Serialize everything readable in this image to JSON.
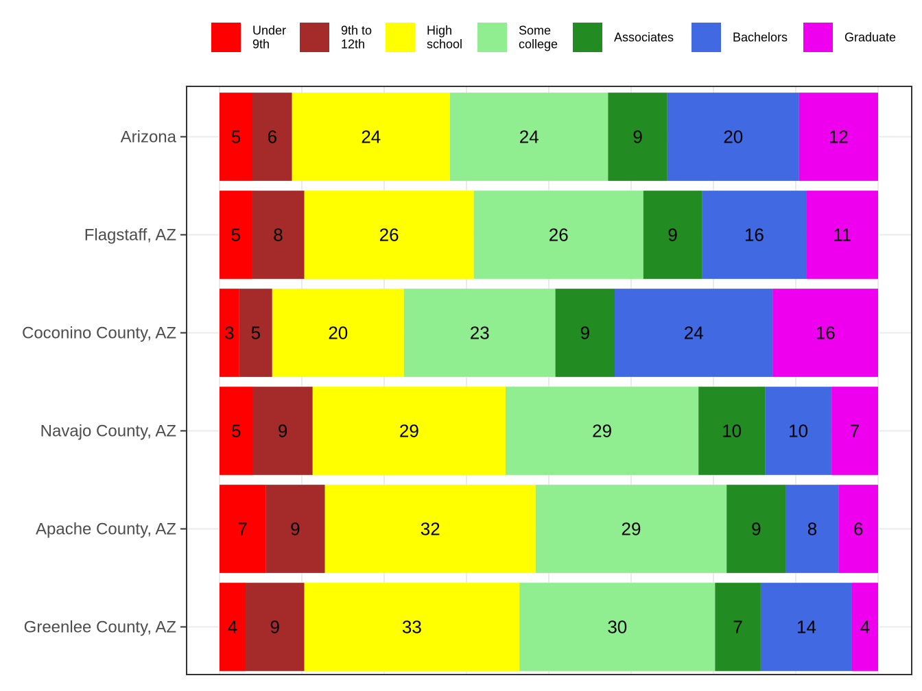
{
  "chart_data": {
    "type": "bar",
    "orientation": "horizontal",
    "stacked": true,
    "categories": [
      "Arizona",
      "Flagstaff, AZ",
      "Coconino County, AZ",
      "Navajo County, AZ",
      "Apache County, AZ",
      "Greenlee County, AZ"
    ],
    "series": [
      {
        "name": "Under\n9th",
        "color": "#FF0000",
        "values": [
          5,
          5,
          3,
          5,
          7,
          4
        ]
      },
      {
        "name": "9th to\n12th",
        "color": "#A52A2A",
        "values": [
          6,
          8,
          5,
          9,
          9,
          9
        ]
      },
      {
        "name": "High\nschool",
        "color": "#FFFF00",
        "values": [
          24,
          26,
          20,
          29,
          32,
          33
        ]
      },
      {
        "name": "Some\ncollege",
        "color": "#90EE90",
        "values": [
          24,
          26,
          23,
          29,
          29,
          30
        ]
      },
      {
        "name": "Associates",
        "color": "#228B22",
        "values": [
          9,
          9,
          9,
          10,
          9,
          7
        ]
      },
      {
        "name": "Bachelors",
        "color": "#4169E1",
        "values": [
          20,
          16,
          24,
          10,
          8,
          14
        ]
      },
      {
        "name": "Graduate",
        "color": "#EE00EE",
        "values": [
          12,
          11,
          16,
          7,
          6,
          4
        ]
      }
    ],
    "legend_position": "top",
    "grid": true,
    "x_axis_visible": false,
    "title": "",
    "xlabel": "",
    "ylabel": "",
    "value_labels": true
  },
  "colors": {
    "panel_border": "#333333",
    "grid": "#ebebeb",
    "axis_text": "#4d4d4d",
    "tick": "#333333"
  }
}
